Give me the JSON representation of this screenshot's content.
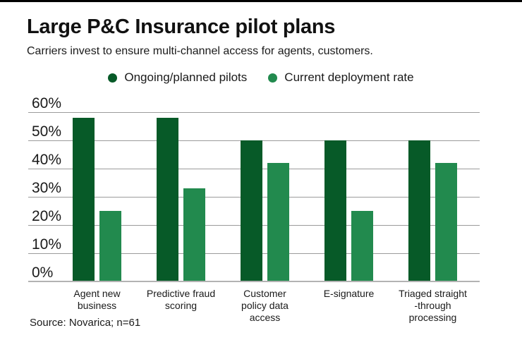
{
  "header": {
    "title": "Large P&C Insurance pilot plans",
    "subtitle": "Carriers invest to ensure multi-channel access for agents, customers."
  },
  "colors": {
    "pilot_green": "#075a28",
    "deployment_green": "#228a4e",
    "gridline_gray": "#9b9b9b",
    "baseline_gray": "#b3b3b3",
    "text_dark": "#1a1a1a",
    "top_rule_black": "#000000"
  },
  "chart_data": {
    "type": "bar",
    "title": "Large P&C Insurance pilot plans",
    "subtitle": "Carriers invest to ensure multi-channel access for agents, customers.",
    "categories": [
      "Agent new\nbusiness",
      "Predictive fraud\nscoring",
      "Customer\npolicy data\naccess",
      "E-signature",
      "Triaged straight\n-through\nprocessing"
    ],
    "series": [
      {
        "name": "Ongoing/planned pilots",
        "color": "#075a28",
        "values": [
          58,
          58,
          50,
          50,
          50
        ]
      },
      {
        "name": "Current deployment rate",
        "color": "#228a4e",
        "values": [
          25,
          33,
          42,
          25,
          42
        ]
      }
    ],
    "xlabel": "",
    "ylabel": "",
    "ylim": [
      0,
      60
    ],
    "ytick_step": 10,
    "ytick_labels": [
      "0%",
      "10%",
      "20%",
      "30%",
      "40%",
      "50%",
      "60%"
    ],
    "grid": true,
    "legend_position": "top"
  },
  "source": "Source: Novarica; n=61"
}
